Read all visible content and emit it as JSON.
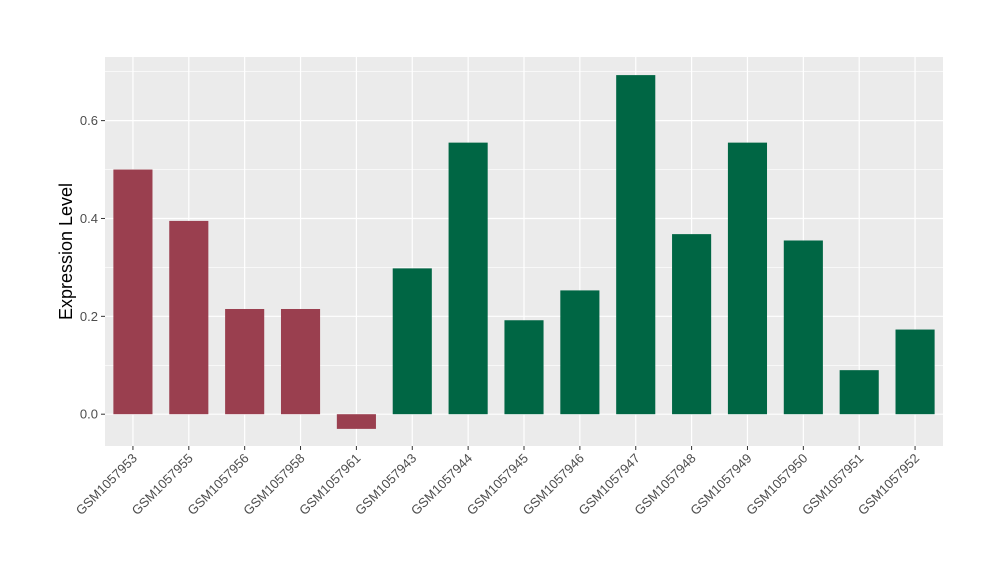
{
  "chart_data": {
    "type": "bar",
    "title": "",
    "xlabel": "",
    "ylabel": "Expression Level",
    "ylim": [
      -0.065,
      0.73
    ],
    "yticks": [
      0.0,
      0.2,
      0.4,
      0.6
    ],
    "ytick_labels": [
      "0.0",
      "0.2",
      "0.4",
      "0.6"
    ],
    "grid": true,
    "panel_background": "#ebebeb",
    "gridline_color": "#ffffff",
    "categories": [
      "GSM1057953",
      "GSM1057955",
      "GSM1057956",
      "GSM1057958",
      "GSM1057961",
      "GSM1057943",
      "GSM1057944",
      "GSM1057945",
      "GSM1057946",
      "GSM1057947",
      "GSM1057948",
      "GSM1057949",
      "GSM1057950",
      "GSM1057951",
      "GSM1057952"
    ],
    "values": [
      0.5,
      0.395,
      0.215,
      0.215,
      -0.03,
      0.298,
      0.555,
      0.192,
      0.253,
      0.693,
      0.368,
      0.555,
      0.355,
      0.09,
      0.173
    ],
    "bar_colors": [
      "#9a3f4f",
      "#9a3f4f",
      "#9a3f4f",
      "#9a3f4f",
      "#9a3f4f",
      "#006644",
      "#006644",
      "#006644",
      "#006644",
      "#006644",
      "#006644",
      "#006644",
      "#006644",
      "#006644",
      "#006644"
    ]
  }
}
